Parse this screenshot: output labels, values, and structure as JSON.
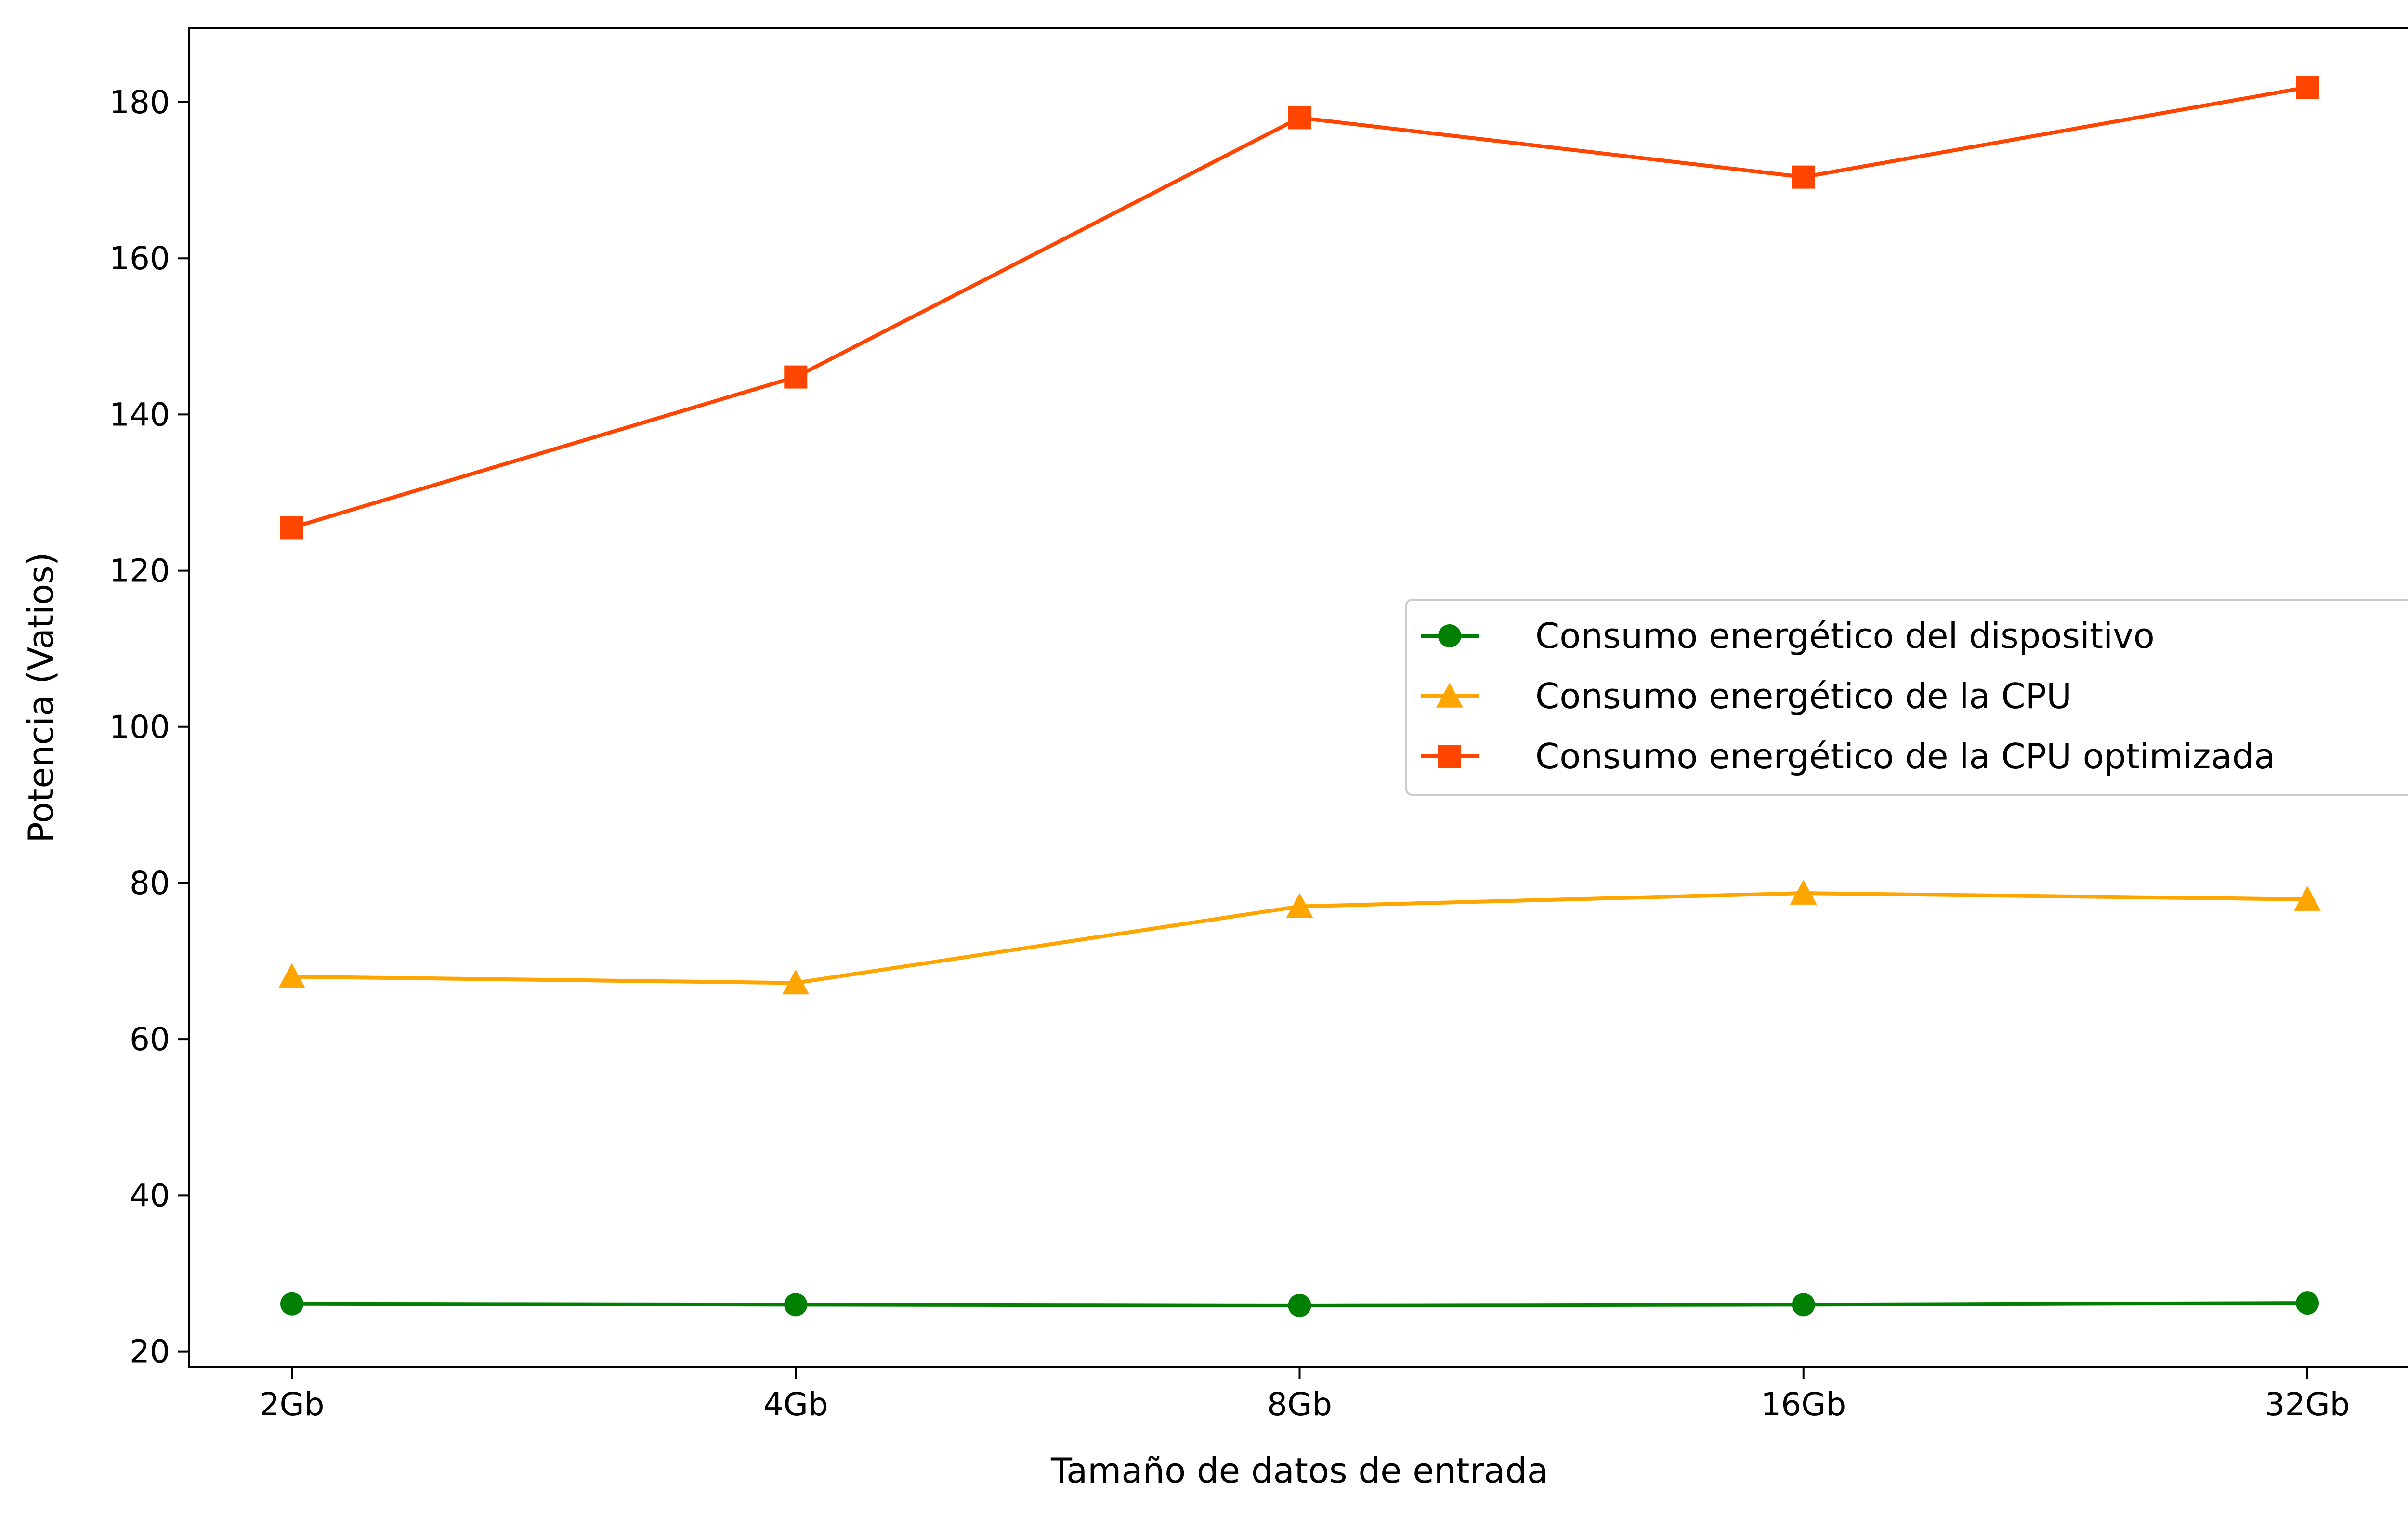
{
  "chart_data": {
    "type": "line",
    "title": "",
    "xlabel": "Tamaño de datos de entrada",
    "ylabel": "Potencia (Vatios)",
    "categories": [
      "2Gb",
      "4Gb",
      "8Gb",
      "16Gb",
      "32Gb"
    ],
    "ylim": [
      18,
      189.5
    ],
    "yticks": [
      20,
      40,
      60,
      80,
      100,
      120,
      140,
      160,
      180
    ],
    "grid": false,
    "legend_position": "center-right",
    "series": [
      {
        "name": "Consumo energético del dispositivo",
        "values": [
          26.1,
          26.0,
          25.9,
          26.0,
          26.2
        ],
        "color": "#008000",
        "marker": "circle"
      },
      {
        "name": "Consumo energético de la CPU",
        "values": [
          68.0,
          67.2,
          77.0,
          78.7,
          77.9
        ],
        "color": "#ffa500",
        "marker": "triangle"
      },
      {
        "name": "Consumo energético de la CPU optimizada",
        "values": [
          125.5,
          144.8,
          178.0,
          170.4,
          181.9
        ],
        "color": "#ff4500",
        "marker": "square"
      }
    ]
  }
}
